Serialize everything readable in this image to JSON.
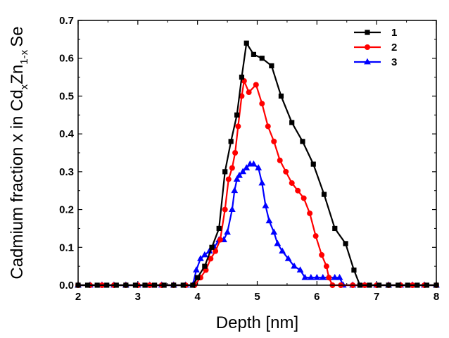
{
  "chart_data": {
    "type": "line",
    "title": "",
    "xlabel": "Depth [nm]",
    "ylabel": {
      "main": "Cadmium fraction x in Cd",
      "sub1": "x",
      "mid": "Zn",
      "sub2": "1-x",
      "end": "Se"
    },
    "xlim": [
      2,
      8
    ],
    "ylim": [
      0,
      0.7
    ],
    "x_ticks": [
      "2",
      "3",
      "4",
      "5",
      "6",
      "7",
      "8"
    ],
    "y_ticks": [
      "0.0",
      "0.1",
      "0.2",
      "0.3",
      "0.4",
      "0.5",
      "0.6",
      "0.7"
    ],
    "legend_position": "top-right",
    "series": [
      {
        "name": "1",
        "color": "#000000",
        "marker": "square",
        "points": [
          [
            2.0,
            0
          ],
          [
            2.16,
            0
          ],
          [
            2.32,
            0
          ],
          [
            2.48,
            0
          ],
          [
            2.64,
            0
          ],
          [
            2.8,
            0
          ],
          [
            2.96,
            0
          ],
          [
            3.12,
            0
          ],
          [
            3.28,
            0
          ],
          [
            3.44,
            0
          ],
          [
            3.6,
            0
          ],
          [
            3.76,
            0
          ],
          [
            3.92,
            0
          ],
          [
            4.0,
            0.02
          ],
          [
            4.12,
            0.05
          ],
          [
            4.24,
            0.1
          ],
          [
            4.36,
            0.15
          ],
          [
            4.46,
            0.3
          ],
          [
            4.56,
            0.38
          ],
          [
            4.66,
            0.45
          ],
          [
            4.74,
            0.55
          ],
          [
            4.82,
            0.64
          ],
          [
            4.94,
            0.61
          ],
          [
            5.08,
            0.6
          ],
          [
            5.24,
            0.58
          ],
          [
            5.4,
            0.5
          ],
          [
            5.58,
            0.43
          ],
          [
            5.76,
            0.38
          ],
          [
            5.94,
            0.32
          ],
          [
            6.12,
            0.24
          ],
          [
            6.3,
            0.15
          ],
          [
            6.48,
            0.11
          ],
          [
            6.62,
            0.04
          ],
          [
            6.72,
            0
          ],
          [
            6.88,
            0
          ],
          [
            7.04,
            0
          ],
          [
            7.2,
            0
          ],
          [
            7.36,
            0
          ],
          [
            7.52,
            0
          ],
          [
            7.68,
            0
          ],
          [
            7.84,
            0
          ],
          [
            8.0,
            0
          ]
        ]
      },
      {
        "name": "2",
        "color": "#ff0000",
        "marker": "circle",
        "points": [
          [
            2.0,
            0
          ],
          [
            2.2,
            0
          ],
          [
            2.4,
            0
          ],
          [
            2.6,
            0
          ],
          [
            2.8,
            0
          ],
          [
            3.0,
            0
          ],
          [
            3.2,
            0
          ],
          [
            3.4,
            0
          ],
          [
            3.6,
            0
          ],
          [
            3.8,
            0
          ],
          [
            3.95,
            0
          ],
          [
            4.05,
            0.02
          ],
          [
            4.14,
            0.04
          ],
          [
            4.22,
            0.07
          ],
          [
            4.3,
            0.09
          ],
          [
            4.38,
            0.12
          ],
          [
            4.46,
            0.2
          ],
          [
            4.52,
            0.28
          ],
          [
            4.58,
            0.31
          ],
          [
            4.63,
            0.35
          ],
          [
            4.68,
            0.42
          ],
          [
            4.74,
            0.5
          ],
          [
            4.78,
            0.54
          ],
          [
            4.86,
            0.51
          ],
          [
            4.98,
            0.53
          ],
          [
            5.08,
            0.48
          ],
          [
            5.18,
            0.42
          ],
          [
            5.28,
            0.38
          ],
          [
            5.38,
            0.33
          ],
          [
            5.48,
            0.3
          ],
          [
            5.58,
            0.27
          ],
          [
            5.68,
            0.25
          ],
          [
            5.78,
            0.23
          ],
          [
            5.88,
            0.19
          ],
          [
            5.98,
            0.13
          ],
          [
            6.08,
            0.08
          ],
          [
            6.16,
            0.05
          ],
          [
            6.2,
            0.02
          ],
          [
            6.26,
            0
          ],
          [
            6.4,
            0
          ],
          [
            6.6,
            0
          ],
          [
            6.8,
            0
          ],
          [
            7.0,
            0
          ],
          [
            7.2,
            0
          ],
          [
            7.4,
            0
          ],
          [
            7.6,
            0
          ],
          [
            7.8,
            0
          ],
          [
            8.0,
            0
          ]
        ]
      },
      {
        "name": "3",
        "color": "#0000ff",
        "marker": "triangle",
        "points": [
          [
            2.0,
            0
          ],
          [
            2.2,
            0
          ],
          [
            2.4,
            0
          ],
          [
            2.6,
            0
          ],
          [
            2.8,
            0
          ],
          [
            3.0,
            0
          ],
          [
            3.2,
            0
          ],
          [
            3.4,
            0
          ],
          [
            3.6,
            0
          ],
          [
            3.8,
            0
          ],
          [
            3.92,
            0
          ],
          [
            3.98,
            0.04
          ],
          [
            4.05,
            0.07
          ],
          [
            4.12,
            0.08
          ],
          [
            4.2,
            0.09
          ],
          [
            4.28,
            0.1
          ],
          [
            4.36,
            0.12
          ],
          [
            4.44,
            0.12
          ],
          [
            4.5,
            0.14
          ],
          [
            4.58,
            0.2
          ],
          [
            4.62,
            0.25
          ],
          [
            4.66,
            0.28
          ],
          [
            4.7,
            0.29
          ],
          [
            4.76,
            0.3
          ],
          [
            4.82,
            0.31
          ],
          [
            4.88,
            0.32
          ],
          [
            4.94,
            0.32
          ],
          [
            5.02,
            0.31
          ],
          [
            5.08,
            0.27
          ],
          [
            5.14,
            0.21
          ],
          [
            5.2,
            0.17
          ],
          [
            5.28,
            0.14
          ],
          [
            5.34,
            0.11
          ],
          [
            5.42,
            0.09
          ],
          [
            5.52,
            0.07
          ],
          [
            5.62,
            0.05
          ],
          [
            5.72,
            0.04
          ],
          [
            5.8,
            0.02
          ],
          [
            5.9,
            0.02
          ],
          [
            6.0,
            0.02
          ],
          [
            6.1,
            0.02
          ],
          [
            6.2,
            0.02
          ],
          [
            6.3,
            0.02
          ],
          [
            6.38,
            0.02
          ],
          [
            6.44,
            0
          ],
          [
            6.6,
            0
          ],
          [
            6.8,
            0
          ],
          [
            7.0,
            0
          ],
          [
            7.2,
            0
          ],
          [
            7.4,
            0
          ],
          [
            7.6,
            0
          ],
          [
            7.8,
            0
          ],
          [
            8.0,
            0
          ]
        ]
      }
    ]
  }
}
